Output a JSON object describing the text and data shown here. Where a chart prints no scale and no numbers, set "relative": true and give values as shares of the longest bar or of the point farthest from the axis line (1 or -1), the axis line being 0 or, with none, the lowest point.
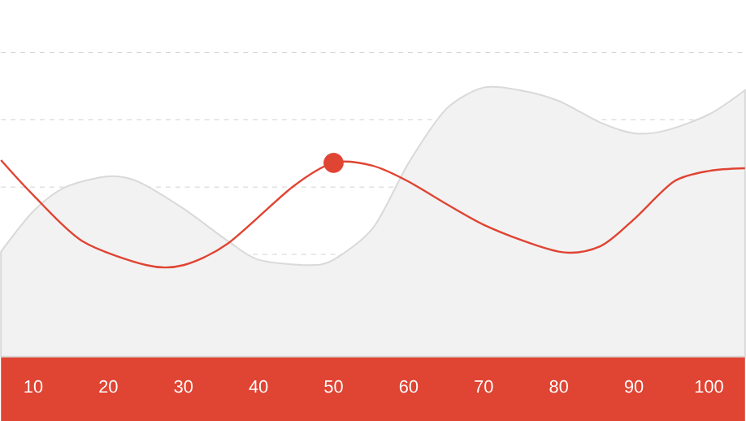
{
  "chart_data": {
    "type": "area",
    "relative": true,
    "grid": "y",
    "xlim": [
      5.7,
      104.8
    ],
    "xticks": [
      10,
      20,
      30,
      40,
      50,
      60,
      70,
      80,
      90,
      100
    ],
    "series": [
      {
        "color": "#f2f2f2",
        "x": [
          5.7,
          10,
          14.3,
          20,
          24.0,
          30,
          35.9,
          40,
          46.7,
          50,
          55.3,
          60,
          65.0,
          70,
          74.8,
          80,
          85.5,
          90,
          94.2,
          100,
          104.8
        ],
        "values": [
          0.39,
          0.54,
          0.63,
          0.67,
          0.65,
          0.55,
          0.43,
          0.36,
          0.34,
          0.36,
          0.48,
          0.72,
          0.92,
          1.0,
          0.99,
          0.95,
          0.87,
          0.83,
          0.84,
          0.9,
          0.99
        ]
      },
      {
        "type": "line",
        "color": "#e04433",
        "marker": "none",
        "x": [
          5.7,
          10,
          16.5,
          25.1,
          30,
          35.9,
          44.5,
          50,
          55.1,
          60,
          70,
          80,
          85.5,
          90,
          95.3,
          100,
          104.8
        ],
        "values": [
          0.73,
          0.6,
          0.43,
          0.34,
          0.34,
          0.42,
          0.63,
          0.72,
          0.71,
          0.65,
          0.49,
          0.39,
          0.41,
          0.51,
          0.65,
          0.69,
          0.7
        ]
      },
      {
        "type": "scatter",
        "color": "#e04433",
        "marker": "circle",
        "x": [
          50
        ],
        "values": [
          0.72
        ]
      }
    ]
  }
}
